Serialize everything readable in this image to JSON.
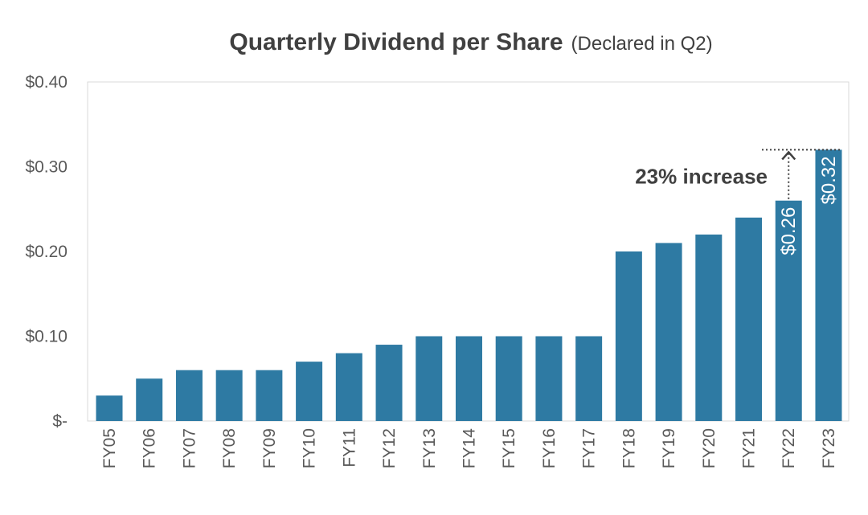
{
  "chart_data": {
    "type": "bar",
    "title": "Quarterly Dividend per Share",
    "subtitle": "(Declared in Q2)",
    "xlabel": "",
    "ylabel": "",
    "categories": [
      "FY05",
      "FY06",
      "FY07",
      "FY08",
      "FY09",
      "FY10",
      "FY11",
      "FY12",
      "FY13",
      "FY14",
      "FY15",
      "FY16",
      "FY17",
      "FY18",
      "FY19",
      "FY20",
      "FY21",
      "FY22",
      "FY23"
    ],
    "values": [
      0.03,
      0.05,
      0.06,
      0.06,
      0.06,
      0.07,
      0.08,
      0.09,
      0.1,
      0.1,
      0.1,
      0.1,
      0.1,
      0.2,
      0.21,
      0.22,
      0.24,
      0.26,
      0.32
    ],
    "ylim": [
      0,
      0.4
    ],
    "y_ticks": [
      {
        "value": 0.4,
        "label": "$0.40"
      },
      {
        "value": 0.3,
        "label": "$0.30"
      },
      {
        "value": 0.2,
        "label": "$0.20"
      },
      {
        "value": 0.1,
        "label": "$0.10"
      },
      {
        "value": 0.0,
        "label": "$-"
      }
    ],
    "data_labels": [
      {
        "category": "FY22",
        "text": "$0.26"
      },
      {
        "category": "FY23",
        "text": "$0.32"
      }
    ],
    "annotation": {
      "text": "23% increase",
      "from_category": "FY22",
      "to_category": "FY23"
    },
    "grid": false,
    "legend": "none",
    "colors": {
      "bar": "#2e7aa3",
      "text": "#404040",
      "tick_text": "#595959",
      "frame": "#d9d9d9",
      "annotation_line": "#404040"
    }
  }
}
